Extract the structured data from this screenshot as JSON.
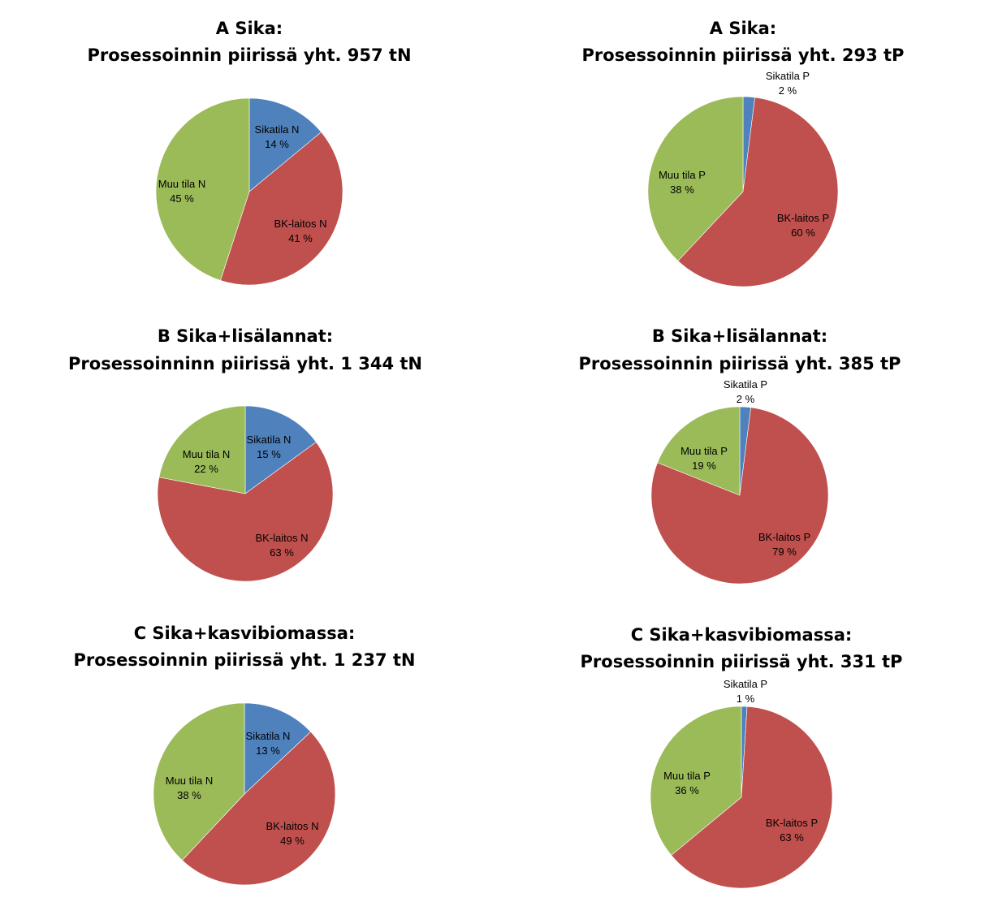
{
  "colors": {
    "sikatila": "#4f81bd",
    "bk_laitos": "#c0504d",
    "muu_tila": "#9bbb59"
  },
  "chart_data": [
    {
      "type": "pie",
      "title": [
        "A Sika:",
        "Prosessoinnin piirissä yht. 957 tN"
      ],
      "categories": [
        "Sikatila N",
        "BK-laitos N",
        "Muu tila N"
      ],
      "values": [
        14,
        41,
        45
      ],
      "labels": [
        "14 %",
        "41 %",
        "45 %"
      ]
    },
    {
      "type": "pie",
      "title": [
        "A Sika:",
        "Prosessoinnin piirissä yht. 293 tP"
      ],
      "categories": [
        "Sikatila P",
        "BK-laitos P",
        "Muu tila P"
      ],
      "values": [
        2,
        60,
        38
      ],
      "labels": [
        "2 %",
        "60 %",
        "38 %"
      ]
    },
    {
      "type": "pie",
      "title": [
        "B Sika+lisälannat:",
        "Prosessoinninn piirissä yht. 1 344 tN"
      ],
      "categories": [
        "Sikatila N",
        "BK-laitos N",
        "Muu tila N"
      ],
      "values": [
        15,
        63,
        22
      ],
      "labels": [
        "15 %",
        "63 %",
        "22 %"
      ]
    },
    {
      "type": "pie",
      "title": [
        "B Sika+lisälannat:",
        "Prosessoinnin piirissä yht. 385 tP"
      ],
      "categories": [
        "Sikatila P",
        "BK-laitos P",
        "Muu tila P"
      ],
      "values": [
        2,
        79,
        19
      ],
      "labels": [
        "2 %",
        "79 %",
        "19 %"
      ]
    },
    {
      "type": "pie",
      "title": [
        "C Sika+kasvibiomassa:",
        "Prosessoinnin piirissä yht. 1 237 tN"
      ],
      "categories": [
        "Sikatila N",
        "BK-laitos N",
        "Muu tila N"
      ],
      "values": [
        13,
        49,
        38
      ],
      "labels": [
        "13 %",
        "49 %",
        "38 %"
      ]
    },
    {
      "type": "pie",
      "title": [
        "C Sika+kasvibiomassa:",
        "Prosessoinnin piirissä yht. 331 tP"
      ],
      "categories": [
        "Sikatila P",
        "BK-laitos P",
        "Muu tila P"
      ],
      "values": [
        1,
        63,
        36
      ],
      "labels": [
        "1 %",
        "63 %",
        "36 %"
      ]
    }
  ]
}
